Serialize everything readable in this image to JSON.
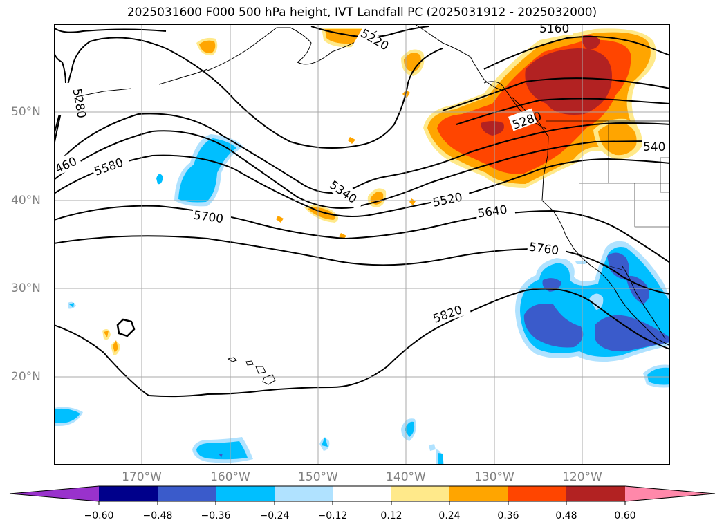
{
  "title": "2025031600 F000 500 hPa height, IVT Landfall PC (2025031912 - 2025032000)",
  "lon_ticks": [
    "170°W",
    "160°W",
    "150°W",
    "140°W",
    "130°W",
    "120°W"
  ],
  "lat_ticks": [
    "50°N",
    "40°N",
    "30°N",
    "20°N"
  ],
  "contour_labels": [
    "5160",
    "5220",
    "5280",
    "5280",
    "540",
    "460",
    "5580",
    "5340",
    "5520",
    "5640",
    "5700",
    "5760",
    "5820"
  ],
  "colorbar": {
    "ticks": [
      "−0.60",
      "−0.48",
      "−0.36",
      "−0.24",
      "−0.12",
      "0.12",
      "0.24",
      "0.36",
      "0.48",
      "0.60"
    ],
    "colors": [
      "#9932cc",
      "#00008b",
      "#3a5bcb",
      "#00bfff",
      "#b0e2ff",
      "#ffffff",
      "#ffe98a",
      "#ffa500",
      "#ff4500",
      "#b22222",
      "#ff88aa"
    ]
  }
}
